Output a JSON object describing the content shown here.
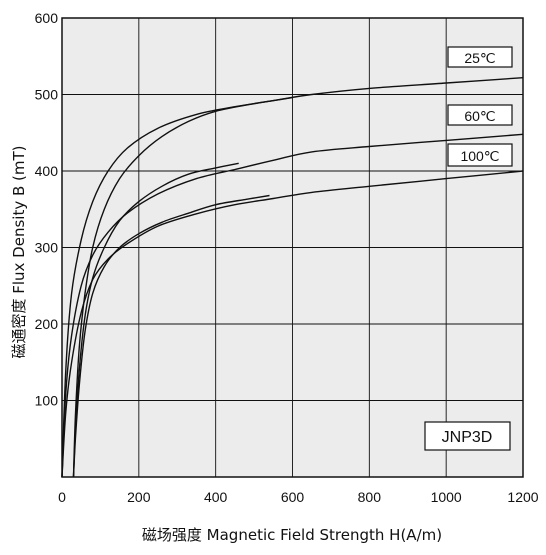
{
  "chart_data": {
    "type": "line",
    "title": "",
    "xlabel": "磁场强度  Magnetic Field Strength H(A/m)",
    "ylabel": "磁通密度   Flux Density B (mT)",
    "xlim": [
      0,
      1200
    ],
    "ylim": [
      0,
      600
    ],
    "x_ticks": [
      0,
      200,
      400,
      600,
      800,
      1000,
      1200
    ],
    "y_ticks": [
      100,
      200,
      300,
      400,
      500,
      600
    ],
    "grid": true,
    "background": "#ececec",
    "line_color": "#111111",
    "model_label": "JNP3D",
    "series": [
      {
        "name": "25℃",
        "values": [
          [
            0,
            0
          ],
          [
            10,
            140
          ],
          [
            25,
            240
          ],
          [
            50,
            310
          ],
          [
            80,
            360
          ],
          [
            120,
            400
          ],
          [
            170,
            430
          ],
          [
            250,
            456
          ],
          [
            350,
            474
          ],
          [
            450,
            484
          ],
          [
            550,
            492
          ],
          [
            650,
            500
          ],
          [
            800,
            508
          ],
          [
            1000,
            515
          ],
          [
            1200,
            522
          ]
        ]
      },
      {
        "name": "60℃",
        "values": [
          [
            0,
            0
          ],
          [
            10,
            110
          ],
          [
            25,
            185
          ],
          [
            50,
            250
          ],
          [
            80,
            290
          ],
          [
            120,
            320
          ],
          [
            170,
            345
          ],
          [
            250,
            370
          ],
          [
            350,
            390
          ],
          [
            450,
            402
          ],
          [
            550,
            414
          ],
          [
            650,
            425
          ],
          [
            800,
            432
          ],
          [
            1000,
            440
          ],
          [
            1200,
            448
          ]
        ]
      },
      {
        "name": "100℃",
        "values": [
          [
            0,
            0
          ],
          [
            10,
            85
          ],
          [
            25,
            150
          ],
          [
            50,
            215
          ],
          [
            80,
            258
          ],
          [
            120,
            285
          ],
          [
            170,
            305
          ],
          [
            250,
            328
          ],
          [
            350,
            344
          ],
          [
            450,
            356
          ],
          [
            550,
            364
          ],
          [
            650,
            372
          ],
          [
            800,
            380
          ],
          [
            1000,
            390
          ],
          [
            1200,
            400
          ]
        ]
      },
      {
        "name": "",
        "values": [
          [
            30,
            0
          ],
          [
            35,
            80
          ],
          [
            45,
            170
          ],
          [
            60,
            240
          ],
          [
            80,
            300
          ],
          [
            110,
            350
          ],
          [
            150,
            390
          ],
          [
            200,
            420
          ],
          [
            260,
            445
          ],
          [
            330,
            465
          ],
          [
            400,
            478
          ],
          [
            500,
            488
          ],
          [
            600,
            496
          ]
        ]
      },
      {
        "name": "",
        "values": [
          [
            30,
            0
          ],
          [
            35,
            60
          ],
          [
            45,
            140
          ],
          [
            60,
            210
          ],
          [
            80,
            260
          ],
          [
            110,
            300
          ],
          [
            150,
            335
          ],
          [
            200,
            360
          ],
          [
            260,
            380
          ],
          [
            330,
            396
          ],
          [
            400,
            404
          ],
          [
            460,
            410
          ]
        ]
      },
      {
        "name": "",
        "values": [
          [
            30,
            0
          ],
          [
            35,
            50
          ],
          [
            45,
            120
          ],
          [
            60,
            190
          ],
          [
            80,
            240
          ],
          [
            110,
            275
          ],
          [
            150,
            300
          ],
          [
            200,
            318
          ],
          [
            260,
            333
          ],
          [
            330,
            345
          ],
          [
            400,
            356
          ],
          [
            480,
            363
          ],
          [
            540,
            368
          ]
        ]
      }
    ]
  }
}
